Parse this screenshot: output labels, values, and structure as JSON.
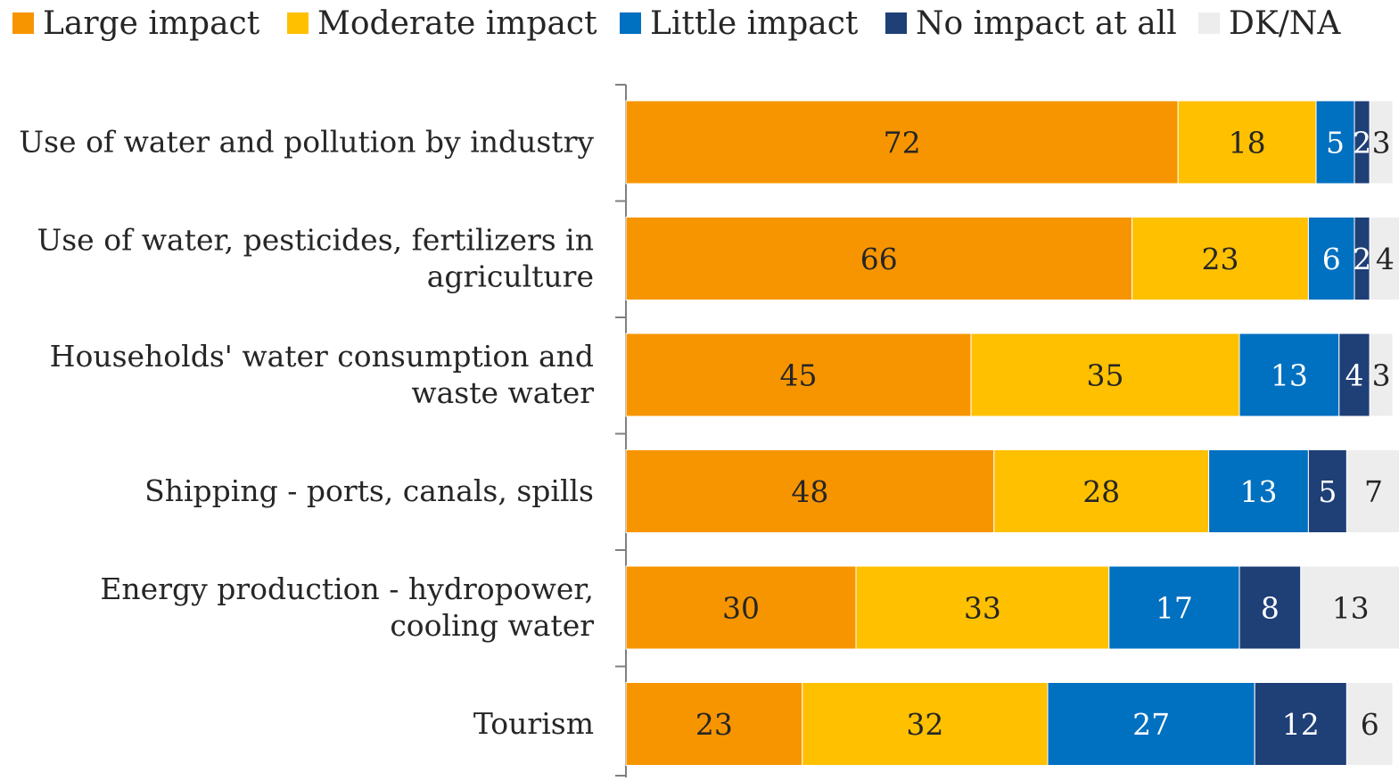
{
  "chart_data": {
    "type": "bar",
    "orientation": "horizontal",
    "stacked": true,
    "grid": false,
    "legend_position": "top",
    "categories": [
      [
        "Use of water and pollution by industry"
      ],
      [
        "Use of water, pesticides, fertilizers in",
        "agriculture"
      ],
      [
        "Households' water consumption and",
        "waste water"
      ],
      [
        "Shipping - ports, canals, spills"
      ],
      [
        "Energy production - hydropower,",
        "cooling water"
      ],
      [
        "Tourism"
      ]
    ],
    "series": [
      {
        "name": "Large impact",
        "color": "#F79500",
        "label_color": "#262626",
        "values": [
          72,
          66,
          45,
          48,
          30,
          23
        ]
      },
      {
        "name": "Moderate impact",
        "color": "#FFC000",
        "label_color": "#262626",
        "values": [
          18,
          23,
          35,
          28,
          33,
          32
        ]
      },
      {
        "name": "Little impact",
        "color": "#0070C0",
        "label_color": "#ffffff",
        "values": [
          5,
          6,
          13,
          13,
          17,
          27
        ]
      },
      {
        "name": "No impact at all",
        "color": "#1F3F77",
        "label_color": "#ffffff",
        "values": [
          2,
          2,
          4,
          5,
          8,
          12
        ]
      },
      {
        "name": "DK/NA",
        "color": "#EDEDED",
        "label_color": "#262626",
        "values": [
          3,
          4,
          3,
          7,
          13,
          6
        ]
      }
    ],
    "xlim": [
      0,
      100
    ]
  }
}
